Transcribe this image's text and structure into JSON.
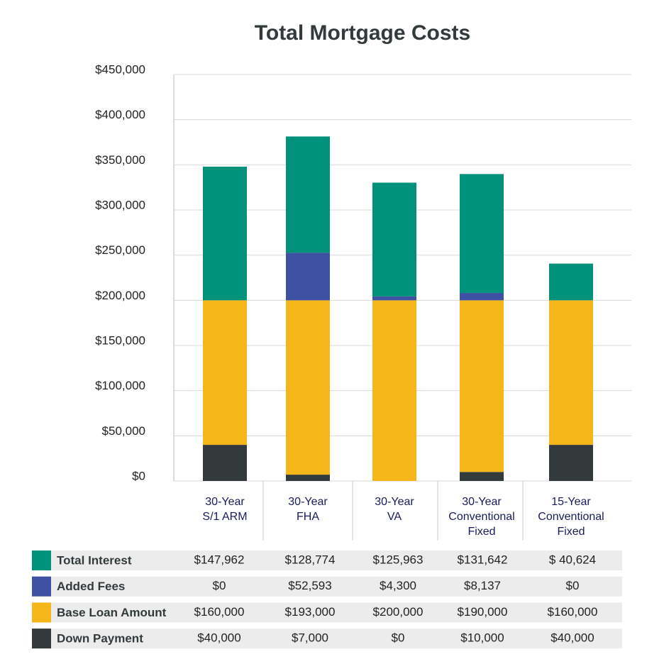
{
  "chart_data": {
    "type": "stacked_bar",
    "title": "Total Mortgage Costs",
    "categories": [
      [
        "30-Year",
        "S/1 ARM"
      ],
      [
        "30-Year",
        "FHA"
      ],
      [
        "30-Year",
        "VA"
      ],
      [
        "30-Year",
        "Conventional",
        "Fixed"
      ],
      [
        "15-Year",
        "Conventional",
        "Fixed"
      ]
    ],
    "series": [
      {
        "name": "Total Interest",
        "color": "#00917a",
        "values": [
          147962,
          128774,
          125963,
          131642,
          40624
        ],
        "value_labels": [
          "$147,962",
          "$128,774",
          "$125,963",
          "$131,642",
          "$ 40,624"
        ]
      },
      {
        "name": "Added Fees",
        "color": "#3f51a3",
        "values": [
          0,
          52593,
          4300,
          8137,
          0
        ],
        "value_labels": [
          "$0",
          "$52,593",
          "$4,300",
          "$8,137",
          "$0"
        ]
      },
      {
        "name": "Base Loan Amount",
        "color": "#f5b619",
        "values": [
          160000,
          193000,
          200000,
          190000,
          160000
        ],
        "value_labels": [
          "$160,000",
          "$193,000",
          "$200,000",
          "$190,000",
          "$160,000"
        ]
      },
      {
        "name": "Down Payment",
        "color": "#333a3c",
        "values": [
          40000,
          7000,
          0,
          10000,
          40000
        ],
        "value_labels": [
          "$40,000",
          "$7,000",
          "$0",
          "$10,000",
          "$40,000"
        ]
      }
    ],
    "ylim": [
      0,
      450000
    ],
    "yticks": [
      {
        "value": 0,
        "label": "$0"
      },
      {
        "value": 50000,
        "label": "$50,000"
      },
      {
        "value": 100000,
        "label": "$100,000"
      },
      {
        "value": 150000,
        "label": "$150,000"
      },
      {
        "value": 200000,
        "label": "$200,000"
      },
      {
        "value": 250000,
        "label": "$250,000"
      },
      {
        "value": 300000,
        "label": "$300,000"
      },
      {
        "value": 350000,
        "label": "$350,000"
      },
      {
        "value": 400000,
        "label": "$400,000"
      },
      {
        "value": 450000,
        "label": "$450,000"
      }
    ],
    "grid": true
  }
}
